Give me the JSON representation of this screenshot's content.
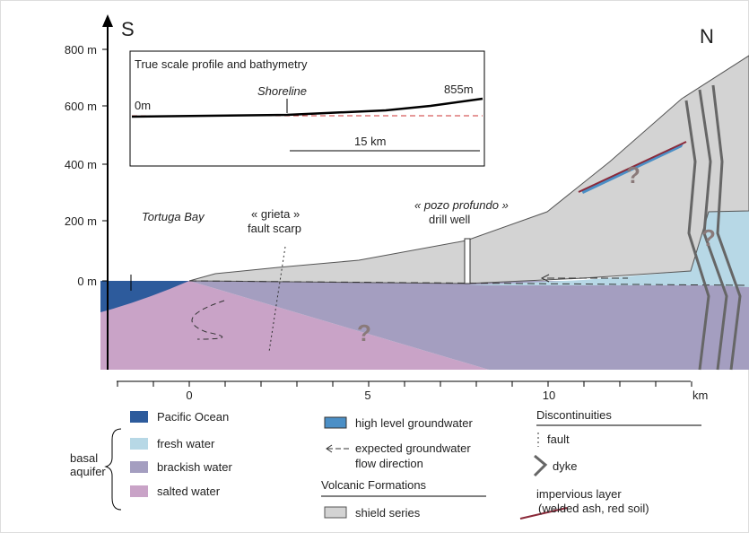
{
  "directions": {
    "south": "S",
    "north": "N"
  },
  "y_axis": {
    "labels": [
      "800 m",
      "600 m",
      "400 m",
      "200 m",
      "0 m"
    ]
  },
  "x_axis": {
    "labels": [
      "0",
      "5",
      "10"
    ],
    "unit": "km"
  },
  "inset": {
    "title": "True scale profile and bathymetry",
    "shoreline": "Shoreline",
    "left_depth": "0m",
    "right_height": "855m",
    "scale": "15 km"
  },
  "annotations": {
    "bay": "Tortuga Bay",
    "grieta": "« grieta »",
    "fault_scarp": "fault scarp",
    "pozo": "« pozo profundo »",
    "drill_well": "drill well"
  },
  "unknowns": [
    "?",
    "?",
    "?"
  ],
  "legend": {
    "pacific_ocean": "Pacific Ocean",
    "basal_aquifer": [
      "basal",
      "aquifer"
    ],
    "fresh_water": "fresh water",
    "brackish_water": "brackish water",
    "salted_water": "salted water",
    "high_level_groundwater": "high level groundwater",
    "flow_direction": [
      "expected groundwater",
      "flow direction"
    ],
    "volcanic_formations": "Volcanic Formations",
    "shield_series": "shield series",
    "discontinuities": "Discontinuities",
    "fault": "fault",
    "dyke": "dyke",
    "impervious_layer": [
      "impervious layer",
      "(welded ash, red soil)"
    ]
  }
}
